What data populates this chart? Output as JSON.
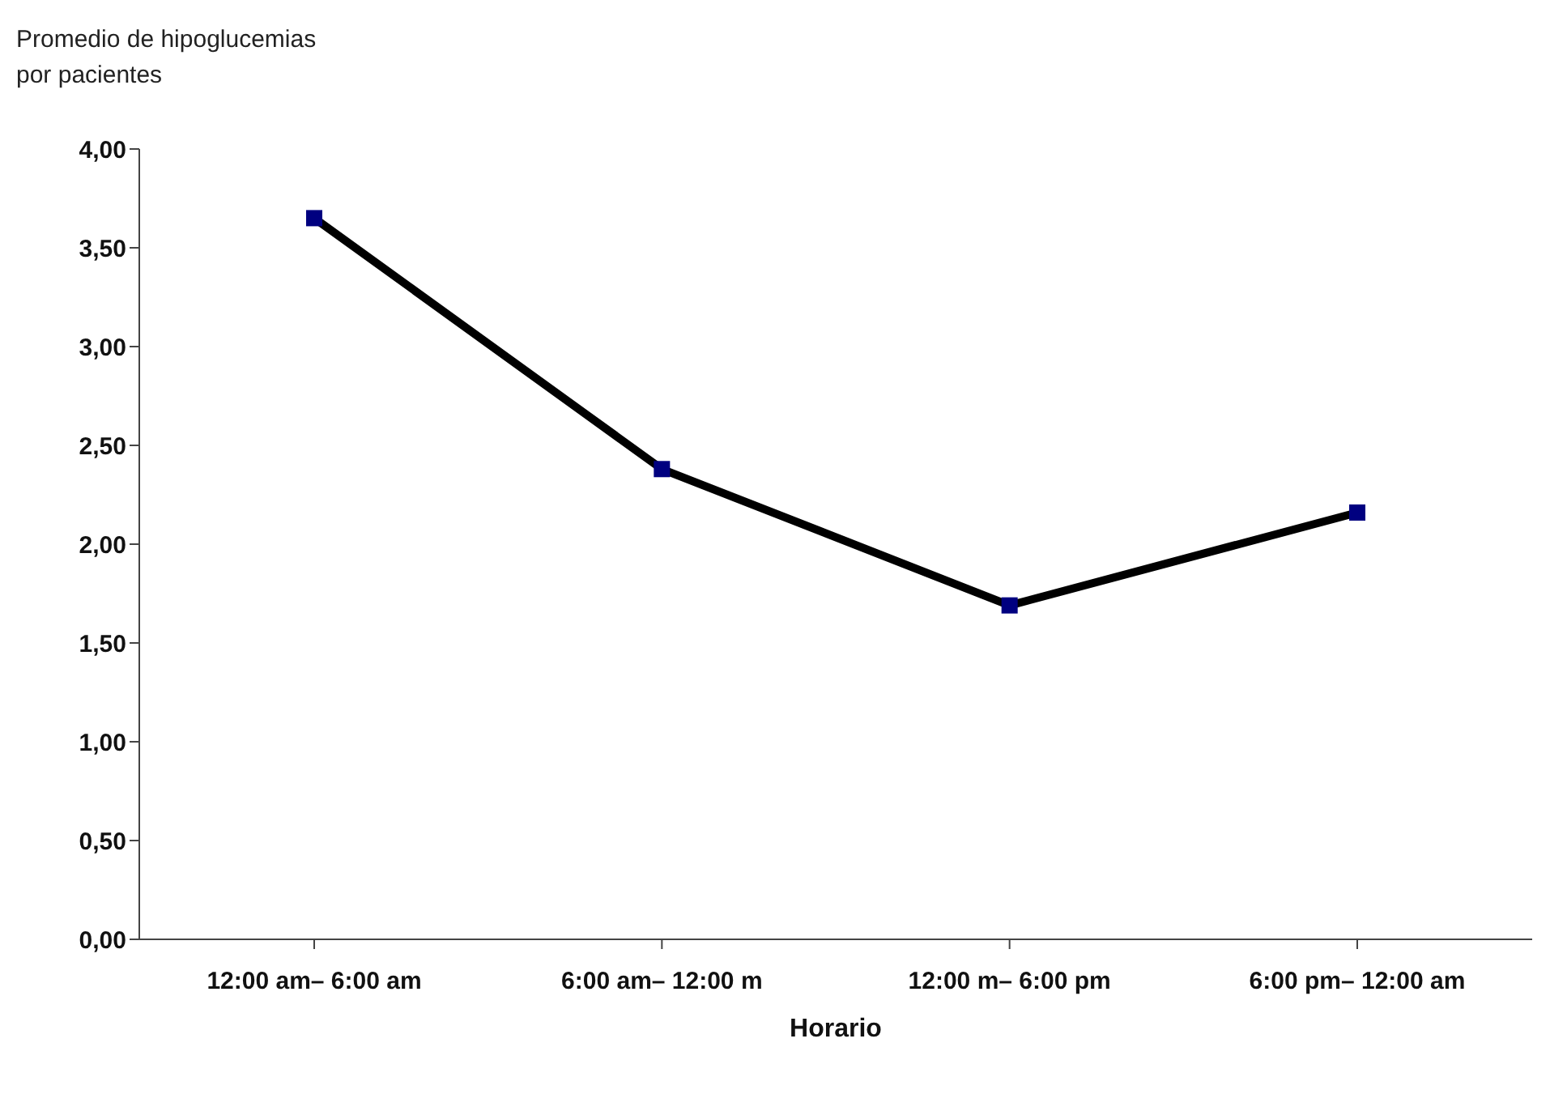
{
  "chart_data": {
    "type": "line",
    "ylabel": "Promedio de hipoglucemias\npor pacientes",
    "xlabel": "Horario",
    "categories": [
      "12:00 am– 6:00 am",
      "6:00 am– 12:00 m",
      "12:00 m– 6:00 pm",
      "6:00 pm– 12:00 am"
    ],
    "series": [
      {
        "color": "#000000",
        "values": [
          3.65,
          2.38,
          1.69,
          2.16
        ]
      }
    ],
    "ylim": [
      0,
      4
    ],
    "yticks": [
      {
        "value": 0,
        "label": "0,00"
      },
      {
        "value": 0.5,
        "label": "0,50"
      },
      {
        "value": 1,
        "label": "1,00"
      },
      {
        "value": 1.5,
        "label": "1,50"
      },
      {
        "value": 2,
        "label": "2,00"
      },
      {
        "value": 2.5,
        "label": "2,50"
      },
      {
        "value": 3,
        "label": "3,00"
      },
      {
        "value": 3.5,
        "label": "3,50"
      },
      {
        "value": 4,
        "label": "4,00"
      }
    ],
    "marker": "square",
    "grid": false,
    "legend": false
  }
}
